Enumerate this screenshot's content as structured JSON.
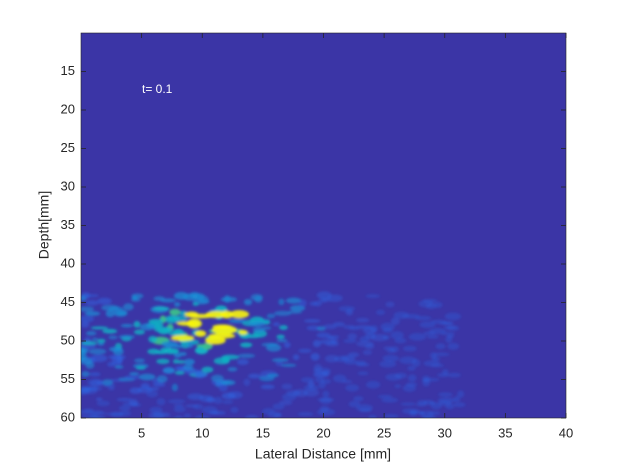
{
  "chart_data": {
    "type": "image",
    "annotation": "t= 0.1",
    "xlabel": "Lateral Distance [mm]",
    "ylabel": "Depth[mm]",
    "xlim": [
      0,
      40
    ],
    "xticks": [
      5,
      10,
      15,
      20,
      25,
      30,
      35,
      40
    ],
    "ylim": [
      10,
      60
    ],
    "yticks": [
      15,
      20,
      25,
      30,
      35,
      40,
      45,
      50,
      55,
      60
    ],
    "y_reversed": true,
    "background_color": "#3b35a6"
  }
}
